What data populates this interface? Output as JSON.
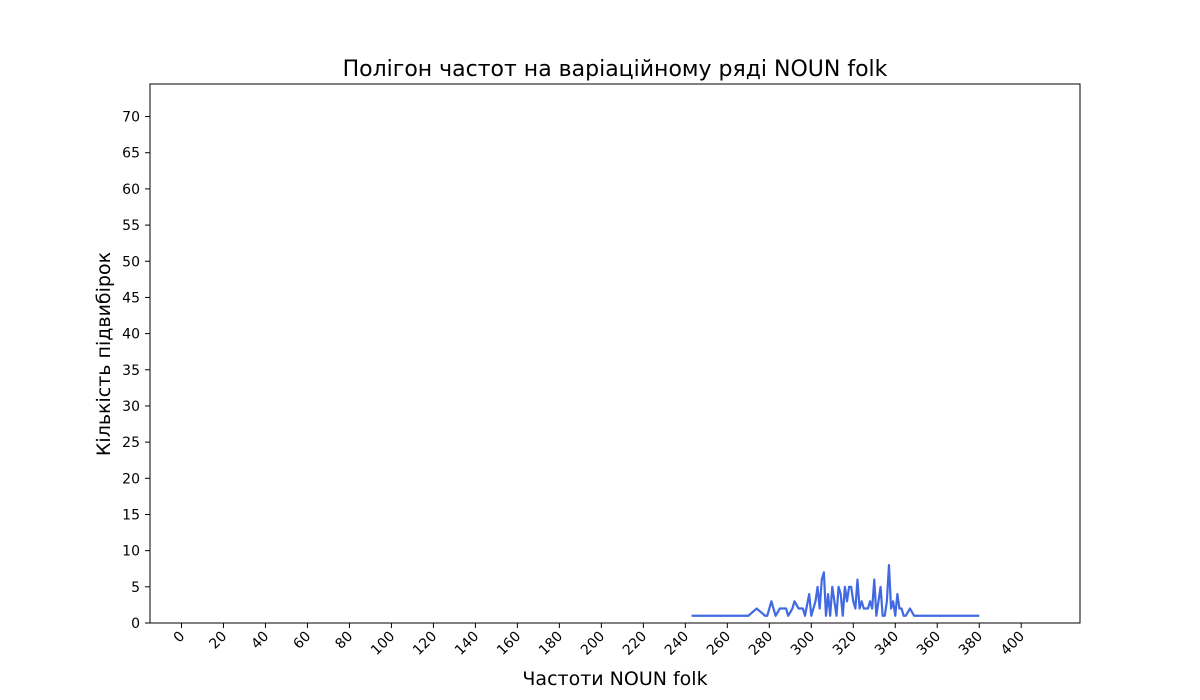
{
  "chart_data": {
    "type": "line",
    "title": "Полігон частот на варіаційному ряді NOUN folk",
    "xlabel": "Частоти NOUN folk",
    "ylabel": "Кількість підвибірок",
    "xlim": [
      -15,
      428
    ],
    "ylim": [
      0,
      74.5
    ],
    "xticks": [
      0,
      20,
      40,
      60,
      80,
      100,
      120,
      140,
      160,
      180,
      200,
      220,
      240,
      260,
      280,
      300,
      320,
      340,
      360,
      380,
      400
    ],
    "yticks": [
      0,
      5,
      10,
      15,
      20,
      25,
      30,
      35,
      40,
      45,
      50,
      55,
      60,
      65,
      70
    ],
    "grid": false,
    "legend": "none",
    "line_color": "#4169e1",
    "series": [
      {
        "x": [
          243,
          270,
          274,
          278,
          279,
          281,
          283,
          285,
          288,
          289,
          291,
          292,
          294,
          295,
          296,
          297,
          299,
          300,
          301,
          302,
          303,
          304,
          305,
          306,
          307,
          308,
          309,
          310,
          311,
          312,
          313,
          314,
          315,
          316,
          317,
          318,
          319,
          320,
          321,
          322,
          323,
          324,
          325,
          326,
          327,
          328,
          329,
          330,
          331,
          332,
          333,
          334,
          335,
          336,
          337,
          338,
          339,
          340,
          341,
          342,
          343,
          344,
          345,
          347,
          349,
          351,
          380
        ],
        "y": [
          1,
          1,
          2,
          1,
          1,
          3,
          1,
          2,
          2,
          1,
          2,
          3,
          2,
          2,
          2,
          1,
          4,
          1,
          2,
          3,
          5,
          2,
          6,
          7,
          1,
          4,
          1,
          5,
          3,
          1,
          5,
          4,
          1,
          5,
          3,
          5,
          5,
          3,
          2,
          6,
          2,
          3,
          2,
          2,
          2,
          3,
          2,
          6,
          1,
          3,
          5,
          1,
          1,
          3,
          8,
          2,
          3,
          1,
          4,
          2,
          2,
          1,
          1,
          2,
          1,
          1,
          1
        ]
      }
    ]
  }
}
